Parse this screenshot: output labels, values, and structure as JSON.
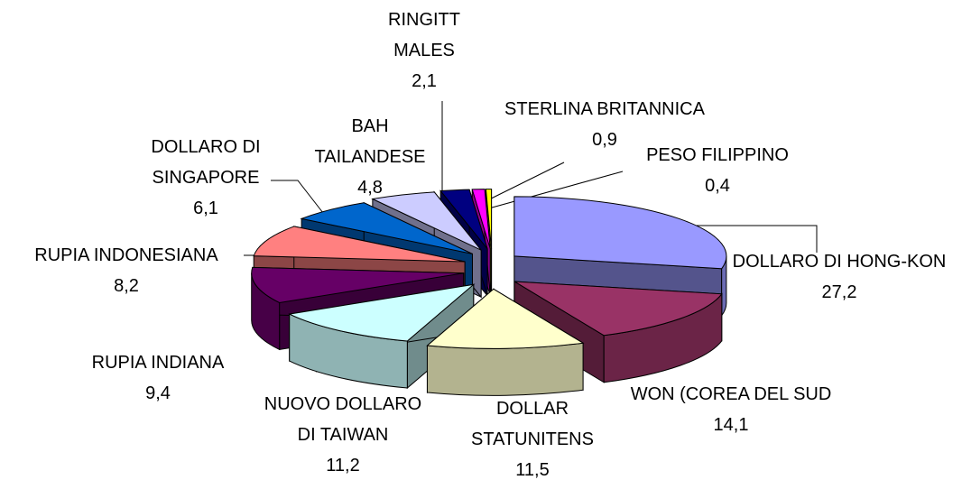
{
  "chart_data": {
    "type": "pie3d",
    "categories": [
      "DOLLARO DI HONG-KON",
      "WON (COREA DEL SUD",
      "DOLLAR STATUNITENS",
      "NUOVO DOLLARO DI TAIWAN",
      "RUPIA INDIANA",
      "RUPIA INDONESIANA",
      "DOLLARO DI SINGAPORE",
      "BAH TAILANDESE",
      "RINGITT MALES",
      "STERLINA BRITANNICA",
      "PESO FILIPPINO"
    ],
    "values": [
      27.2,
      14.1,
      11.5,
      11.2,
      9.4,
      8.2,
      6.1,
      4.8,
      2.1,
      0.9,
      0.4
    ],
    "value_labels": [
      "27,2",
      "14,1",
      "11,5",
      "11,2",
      "9,4",
      "8,2",
      "6,1",
      "4,8",
      "2,1",
      "0,9",
      "0,4"
    ],
    "colors": [
      "#9999ff",
      "#993366",
      "#ffffcc",
      "#ccffff",
      "#660066",
      "#ff8080",
      "#0066cc",
      "#ccccff",
      "#000080",
      "#ff00ff",
      "#ffff00"
    ]
  }
}
